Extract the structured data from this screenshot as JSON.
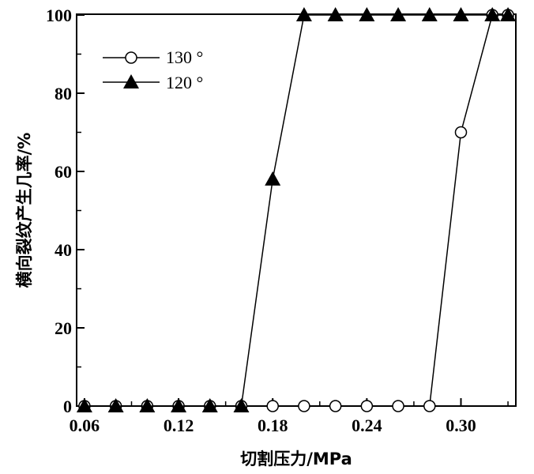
{
  "chart_data": {
    "type": "line",
    "xlabel": "切割压力/MPa",
    "ylabel": "横向裂纹产生几率/%",
    "xlim": [
      0.055,
      0.335
    ],
    "ylim": [
      0,
      100
    ],
    "x_ticks": [
      0.06,
      0.12,
      0.18,
      0.24,
      0.3
    ],
    "x_tick_labels": [
      "0.06",
      "0.12",
      "0.18",
      "0.24",
      "0.30"
    ],
    "y_ticks": [
      0,
      20,
      40,
      60,
      80,
      100
    ],
    "y_tick_labels": [
      "0",
      "20",
      "40",
      "60",
      "80",
      "100"
    ],
    "legend_position": "top-left",
    "series": [
      {
        "name": "130 °",
        "marker": "open-circle",
        "x": [
          0.06,
          0.08,
          0.1,
          0.12,
          0.14,
          0.16,
          0.18,
          0.2,
          0.22,
          0.24,
          0.26,
          0.28,
          0.3,
          0.32,
          0.33
        ],
        "y": [
          0,
          0,
          0,
          0,
          0,
          0,
          0,
          0,
          0,
          0,
          0,
          0,
          70,
          100,
          100
        ]
      },
      {
        "name": "120 °",
        "marker": "filled-triangle",
        "x": [
          0.06,
          0.08,
          0.1,
          0.12,
          0.14,
          0.16,
          0.18,
          0.2,
          0.22,
          0.24,
          0.26,
          0.28,
          0.3,
          0.32,
          0.33
        ],
        "y": [
          0,
          0,
          0,
          0,
          0,
          0,
          58,
          100,
          100,
          100,
          100,
          100,
          100,
          100,
          100
        ]
      }
    ]
  }
}
